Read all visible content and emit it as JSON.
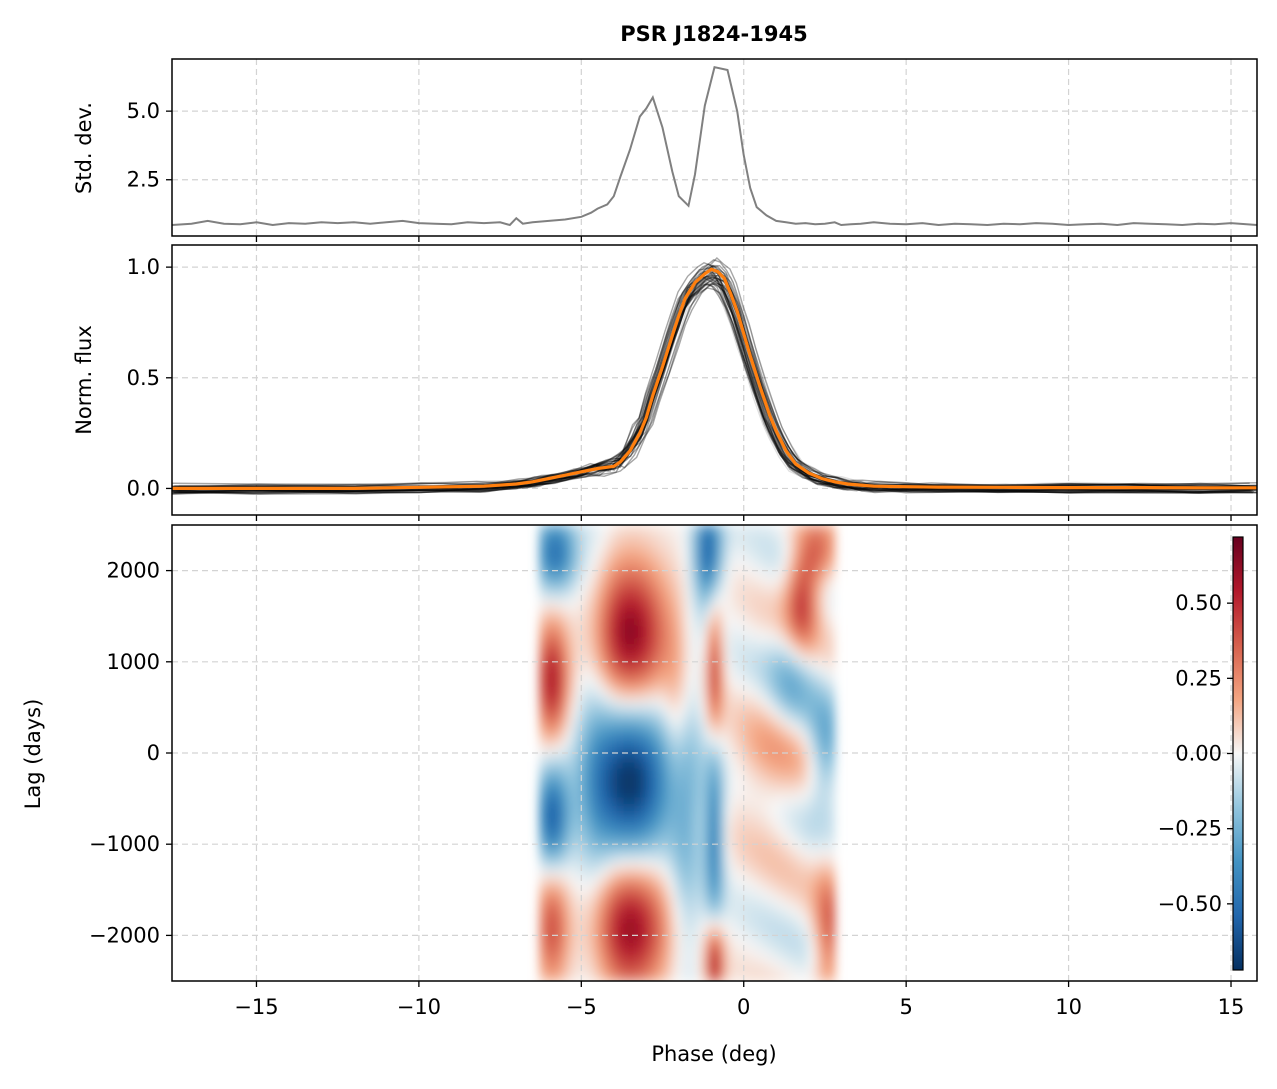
{
  "figure": {
    "title": "PSR J1824-1945",
    "colors": {
      "std_line": "#808080",
      "mean_profile": "#ff7f0e",
      "individual_profiles": "#000000",
      "grid": "#d3d3d3",
      "colormap": "RdBu_r"
    }
  },
  "chart_data": [
    {
      "panel": "std",
      "type": "line",
      "title": "PSR J1824-1945",
      "xlabel": "",
      "ylabel": "Std. dev.",
      "xlim": [
        -17.6,
        15.8
      ],
      "ylim": [
        0.45,
        6.9
      ],
      "yticks": [
        2.5,
        5.0
      ],
      "ytick_labels": [
        "2.5",
        "5.0"
      ],
      "grid": true,
      "series": [
        {
          "x": [
            -17.6,
            -17.0,
            -16.5,
            -16.0,
            -15.5,
            -15.0,
            -14.5,
            -14.0,
            -13.5,
            -13.0,
            -12.5,
            -12.0,
            -11.5,
            -11.0,
            -10.5,
            -10.0,
            -9.5,
            -9.0,
            -8.5,
            -8.0,
            -7.5,
            -7.2,
            -7.0,
            -6.8,
            -6.5,
            -6.0,
            -5.5,
            -5.0,
            -4.7,
            -4.5,
            -4.2,
            -4.0,
            -3.8,
            -3.5,
            -3.2,
            -3.0,
            -2.8,
            -2.5,
            -2.2,
            -2.0,
            -1.7,
            -1.5,
            -1.2,
            -0.9,
            -0.5,
            -0.2,
            0.0,
            0.2,
            0.4,
            0.7,
            1.0,
            1.3,
            1.6,
            1.9,
            2.2,
            2.5,
            2.8,
            3.0,
            3.3,
            3.6,
            4.0,
            4.5,
            5.0,
            5.5,
            6.0,
            6.5,
            7.0,
            7.5,
            8.0,
            8.5,
            9.0,
            9.5,
            10.0,
            10.5,
            11.0,
            11.5,
            12.0,
            12.5,
            13.0,
            13.5,
            14.0,
            14.5,
            15.0,
            15.8
          ],
          "y": [
            0.85,
            0.9,
            1.0,
            0.9,
            0.88,
            0.95,
            0.85,
            0.92,
            0.9,
            0.95,
            0.92,
            0.95,
            0.9,
            0.95,
            1.0,
            0.92,
            0.9,
            0.88,
            0.95,
            0.92,
            0.95,
            0.85,
            1.1,
            0.9,
            0.95,
            1.0,
            1.05,
            1.15,
            1.3,
            1.45,
            1.6,
            1.9,
            2.6,
            3.6,
            4.8,
            5.1,
            5.5,
            4.4,
            2.8,
            1.9,
            1.55,
            2.7,
            5.2,
            6.6,
            6.5,
            5.0,
            3.4,
            2.2,
            1.5,
            1.2,
            1.0,
            0.95,
            0.9,
            0.92,
            0.88,
            0.9,
            0.95,
            0.85,
            0.88,
            0.9,
            0.95,
            0.9,
            0.88,
            0.92,
            0.85,
            0.9,
            0.88,
            0.85,
            0.9,
            0.88,
            0.92,
            0.9,
            0.85,
            0.88,
            0.9,
            0.85,
            0.92,
            0.9,
            0.88,
            0.85,
            0.9,
            0.88,
            0.92,
            0.85
          ]
        }
      ]
    },
    {
      "panel": "profile",
      "type": "line",
      "xlabel": "",
      "ylabel": "Norm. flux",
      "xlim": [
        -17.6,
        15.8
      ],
      "ylim": [
        -0.12,
        1.1
      ],
      "yticks": [
        0.0,
        0.5,
        1.0
      ],
      "ytick_labels": [
        "0.0",
        "0.5",
        "1.0"
      ],
      "grid": true,
      "series": [
        {
          "role": "mean",
          "x": [
            -17.6,
            -15.0,
            -12.0,
            -10.0,
            -8.0,
            -7.0,
            -6.5,
            -6.0,
            -5.5,
            -5.0,
            -4.5,
            -4.0,
            -3.8,
            -3.5,
            -3.2,
            -3.0,
            -2.8,
            -2.5,
            -2.2,
            -2.0,
            -1.8,
            -1.5,
            -1.2,
            -1.0,
            -0.8,
            -0.6,
            -0.4,
            -0.2,
            0.0,
            0.2,
            0.5,
            0.8,
            1.0,
            1.3,
            1.6,
            2.0,
            2.4,
            2.8,
            3.2,
            3.6,
            4.0,
            5.0,
            6.0,
            8.0,
            10.0,
            12.0,
            14.0,
            15.8
          ],
          "y": [
            0.0,
            0.0,
            0.0,
            0.005,
            0.01,
            0.02,
            0.03,
            0.045,
            0.06,
            0.075,
            0.09,
            0.1,
            0.12,
            0.17,
            0.25,
            0.32,
            0.42,
            0.55,
            0.69,
            0.78,
            0.86,
            0.93,
            0.97,
            0.99,
            0.98,
            0.95,
            0.88,
            0.8,
            0.7,
            0.6,
            0.46,
            0.33,
            0.26,
            0.17,
            0.11,
            0.07,
            0.045,
            0.03,
            0.02,
            0.015,
            0.01,
            0.008,
            0.006,
            0.005,
            0.004,
            0.004,
            0.003,
            0.003
          ]
        }
      ]
    },
    {
      "panel": "lag",
      "type": "heatmap",
      "xlabel": "Phase (deg)",
      "ylabel": "Lag (days)",
      "xlim": [
        -17.6,
        15.8
      ],
      "ylim": [
        -2500,
        2500
      ],
      "xticks": [
        -15,
        -10,
        -5,
        0,
        5,
        10,
        15
      ],
      "xtick_labels": [
        "−15",
        "−10",
        "−5",
        "0",
        "5",
        "10",
        "15"
      ],
      "yticks": [
        -2000,
        -1000,
        0,
        1000,
        2000
      ],
      "ytick_labels": [
        "−2000",
        "−1000",
        "0",
        "1000",
        "2000"
      ],
      "grid": true,
      "data_extent": {
        "x": [
          -6.3,
          2.8
        ],
        "y": [
          -2500,
          2500
        ]
      },
      "colorbar": {
        "range": [
          -0.72,
          0.72
        ],
        "ticks": [
          -0.5,
          -0.25,
          0.0,
          0.25,
          0.5
        ],
        "tick_labels": [
          "−0.50",
          "−0.25",
          "0.00",
          "0.25",
          "0.50"
        ]
      }
    }
  ]
}
